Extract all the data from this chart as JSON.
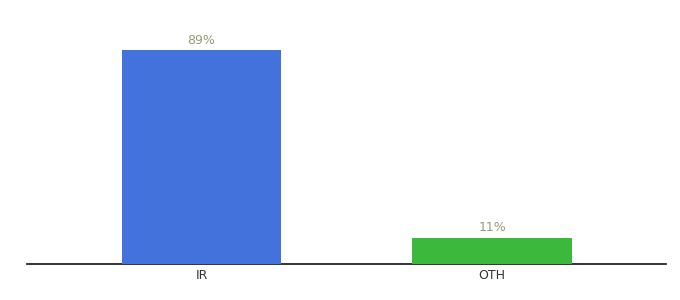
{
  "categories": [
    "IR",
    "OTH"
  ],
  "values": [
    89,
    11
  ],
  "bar_colors": [
    "#4472dd",
    "#3cb83c"
  ],
  "labels": [
    "89%",
    "11%"
  ],
  "background_color": "#ffffff",
  "bar_width": 0.55,
  "ylim": [
    0,
    100
  ],
  "label_fontsize": 9,
  "tick_fontsize": 9,
  "label_color": "#999977",
  "axis_line_color": "#111111",
  "figsize": [
    6.8,
    3.0
  ],
  "dpi": 100
}
